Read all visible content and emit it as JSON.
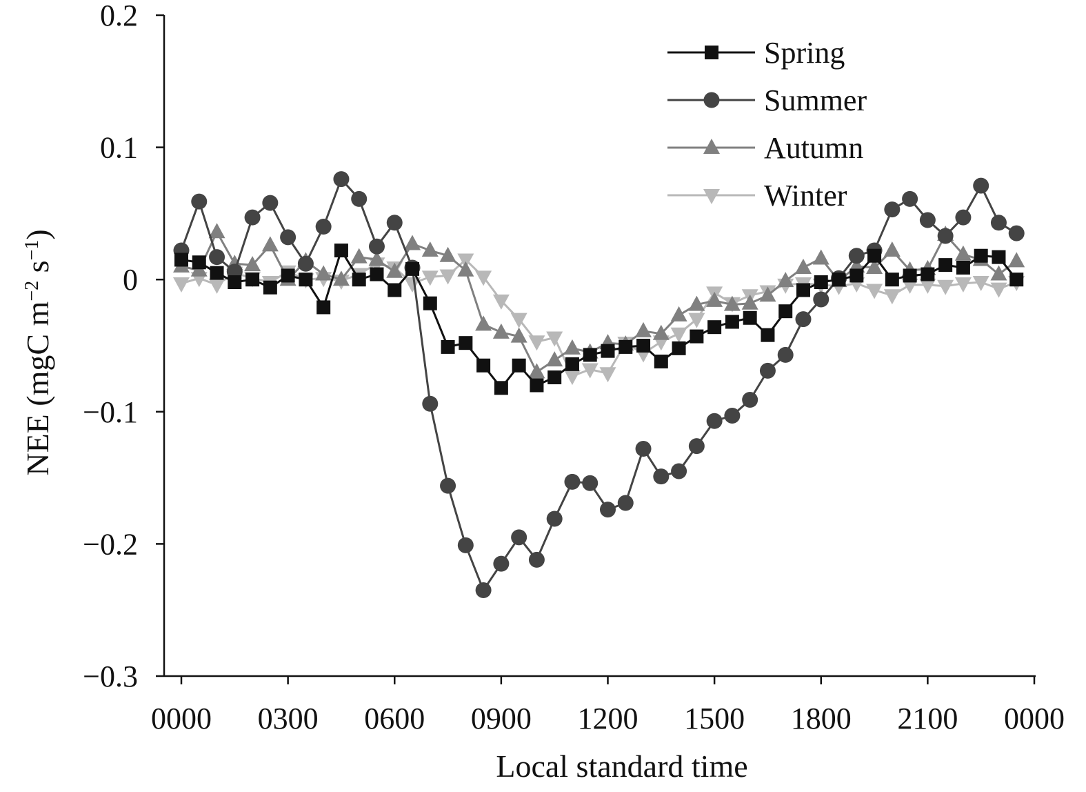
{
  "chart_data": {
    "type": "line",
    "title": "",
    "xlabel": "Local standard time",
    "ylabel_parts": [
      "NEE (mgC m",
      "−2",
      " s",
      "−1",
      ")"
    ],
    "x_ticks": [
      "0000",
      "0300",
      "0600",
      "0900",
      "1200",
      "1500",
      "1800",
      "2100",
      "0000"
    ],
    "x_range_hours": [
      0,
      24
    ],
    "y_ticks": [
      "0.2",
      "0.1",
      "0",
      "−0.1",
      "−0.2",
      "−0.3"
    ],
    "ylim": [
      -0.3,
      0.2
    ],
    "grid": false,
    "legend_position": "top-right",
    "x_hours": [
      0,
      0.5,
      1,
      1.5,
      2,
      2.5,
      3,
      3.5,
      4,
      4.5,
      5,
      5.5,
      6,
      6.5,
      7,
      7.5,
      8,
      8.5,
      9,
      9.5,
      10,
      10.5,
      11,
      11.5,
      12,
      12.5,
      13,
      13.5,
      14,
      14.5,
      15,
      15.5,
      16,
      16.5,
      17,
      17.5,
      18,
      18.5,
      19,
      19.5,
      20,
      20.5,
      21,
      21.5,
      22,
      22.5,
      23,
      23.5
    ],
    "series": [
      {
        "name": "Spring",
        "marker": "square",
        "color": "#111111",
        "values": [
          0.015,
          0.013,
          0.005,
          -0.002,
          0.0,
          -0.006,
          0.003,
          0.0,
          -0.021,
          0.022,
          0.0,
          0.004,
          -0.008,
          0.008,
          -0.018,
          -0.051,
          -0.048,
          -0.065,
          -0.082,
          -0.065,
          -0.08,
          -0.074,
          -0.064,
          -0.057,
          -0.054,
          -0.051,
          -0.05,
          -0.062,
          -0.052,
          -0.043,
          -0.036,
          -0.032,
          -0.029,
          -0.042,
          -0.024,
          -0.008,
          -0.002,
          0.0,
          0.003,
          0.018,
          0.0,
          0.003,
          0.004,
          0.011,
          0.009,
          0.018,
          0.017,
          0.0
        ]
      },
      {
        "name": "Summer",
        "marker": "circle",
        "color": "#444444",
        "values": [
          0.022,
          0.059,
          0.017,
          0.006,
          0.047,
          0.058,
          0.032,
          0.012,
          0.04,
          0.076,
          0.061,
          0.025,
          0.043,
          0.009,
          -0.094,
          -0.156,
          -0.201,
          -0.235,
          -0.215,
          -0.195,
          -0.212,
          -0.181,
          -0.153,
          -0.154,
          -0.174,
          -0.169,
          -0.128,
          -0.149,
          -0.145,
          -0.126,
          -0.107,
          -0.103,
          -0.091,
          -0.069,
          -0.057,
          -0.03,
          -0.015,
          0.001,
          0.018,
          0.022,
          0.053,
          0.061,
          0.045,
          0.033,
          0.047,
          0.071,
          0.043,
          0.035
        ]
      },
      {
        "name": "Autumn",
        "marker": "triangle-up",
        "color": "#808080",
        "values": [
          0.01,
          0.007,
          0.036,
          0.012,
          0.011,
          0.026,
          0.0,
          0.014,
          0.004,
          0.0,
          0.017,
          0.015,
          0.006,
          0.027,
          0.022,
          0.018,
          0.007,
          -0.034,
          -0.04,
          -0.043,
          -0.07,
          -0.061,
          -0.052,
          -0.055,
          -0.048,
          -0.049,
          -0.039,
          -0.041,
          -0.027,
          -0.019,
          -0.016,
          -0.019,
          -0.018,
          -0.012,
          -0.001,
          0.009,
          0.016,
          -0.001,
          0.01,
          0.009,
          0.022,
          0.007,
          0.008,
          0.034,
          0.019,
          0.015,
          0.004,
          0.014
        ]
      },
      {
        "name": "Winter",
        "marker": "triangle-down",
        "color": "#b8b8b8",
        "values": [
          -0.003,
          0.001,
          -0.004,
          0.005,
          0.001,
          -0.002,
          0.006,
          0.0,
          0.001,
          -0.001,
          0.004,
          0.012,
          0.009,
          -0.003,
          0.002,
          0.003,
          0.015,
          0.002,
          -0.016,
          -0.03,
          -0.047,
          -0.044,
          -0.073,
          -0.068,
          -0.071,
          -0.048,
          -0.056,
          -0.047,
          -0.041,
          -0.03,
          -0.01,
          -0.018,
          -0.012,
          -0.009,
          -0.004,
          -0.003,
          -0.004,
          -0.005,
          -0.003,
          -0.008,
          -0.012,
          -0.004,
          -0.004,
          -0.005,
          -0.003,
          -0.002,
          -0.007,
          -0.002
        ]
      }
    ]
  }
}
